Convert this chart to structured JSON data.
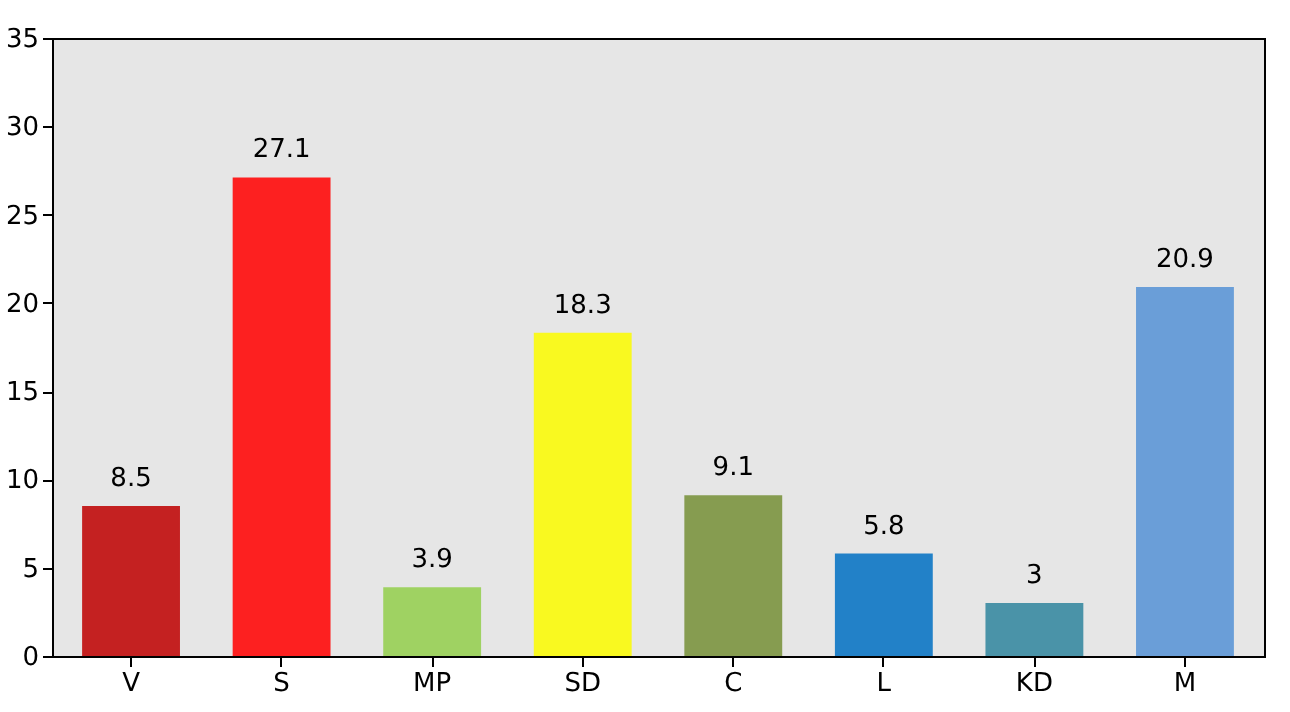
{
  "chart_data": {
    "type": "bar",
    "categories": [
      "V",
      "S",
      "MP",
      "SD",
      "C",
      "L",
      "KD",
      "M"
    ],
    "values": [
      8.5,
      27.1,
      3.9,
      18.3,
      9.1,
      5.8,
      3,
      20.9
    ],
    "colors": [
      "#c42121",
      "#fd2020",
      "#9fd262",
      "#f9f920",
      "#869c50",
      "#2281c8",
      "#4a93a8",
      "#6a9ed8"
    ],
    "ylim": [
      0,
      35
    ],
    "yticks": [
      0,
      5,
      10,
      15,
      20,
      25,
      30,
      35
    ],
    "grid": false,
    "data_labels": true
  }
}
